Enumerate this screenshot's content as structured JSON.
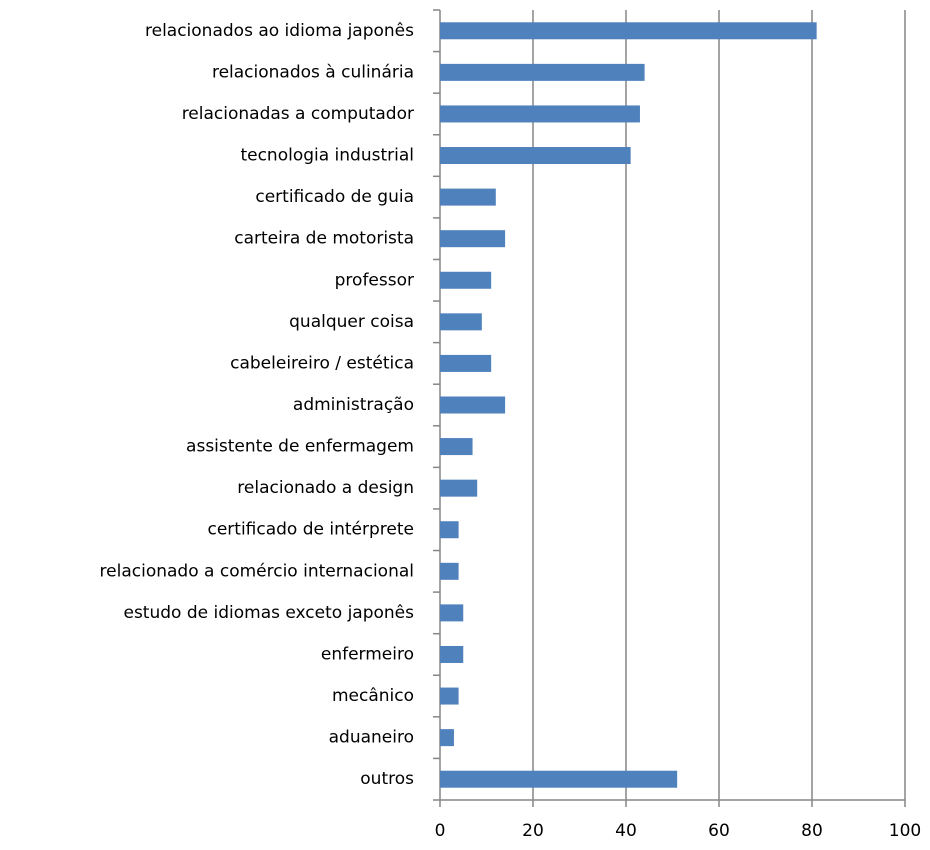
{
  "chart_data": {
    "type": "barh",
    "categories": [
      "relacionados ao idioma japonês",
      "relacionados à culinária",
      "relacionadas a computador",
      "tecnologia industrial",
      "certificado de guia",
      "carteira de motorista",
      "professor",
      "qualquer coisa",
      "cabeleireiro / estética",
      "administração",
      "assistente de enfermagem",
      "relacionado a design",
      "certificado de intérprete",
      "relacionado a comércio internacional",
      "estudo de idiomas exceto japonês",
      "enfermeiro",
      "mecânico",
      "aduaneiro",
      "outros"
    ],
    "values": [
      81,
      44,
      43,
      41,
      12,
      14,
      11,
      9,
      11,
      14,
      7,
      8,
      4,
      4,
      5,
      5,
      4,
      3,
      51
    ],
    "color": "#4f81bd",
    "xlim": [
      0,
      100
    ],
    "xticks": [
      0,
      20,
      40,
      60,
      80,
      100
    ],
    "grid": true
  }
}
